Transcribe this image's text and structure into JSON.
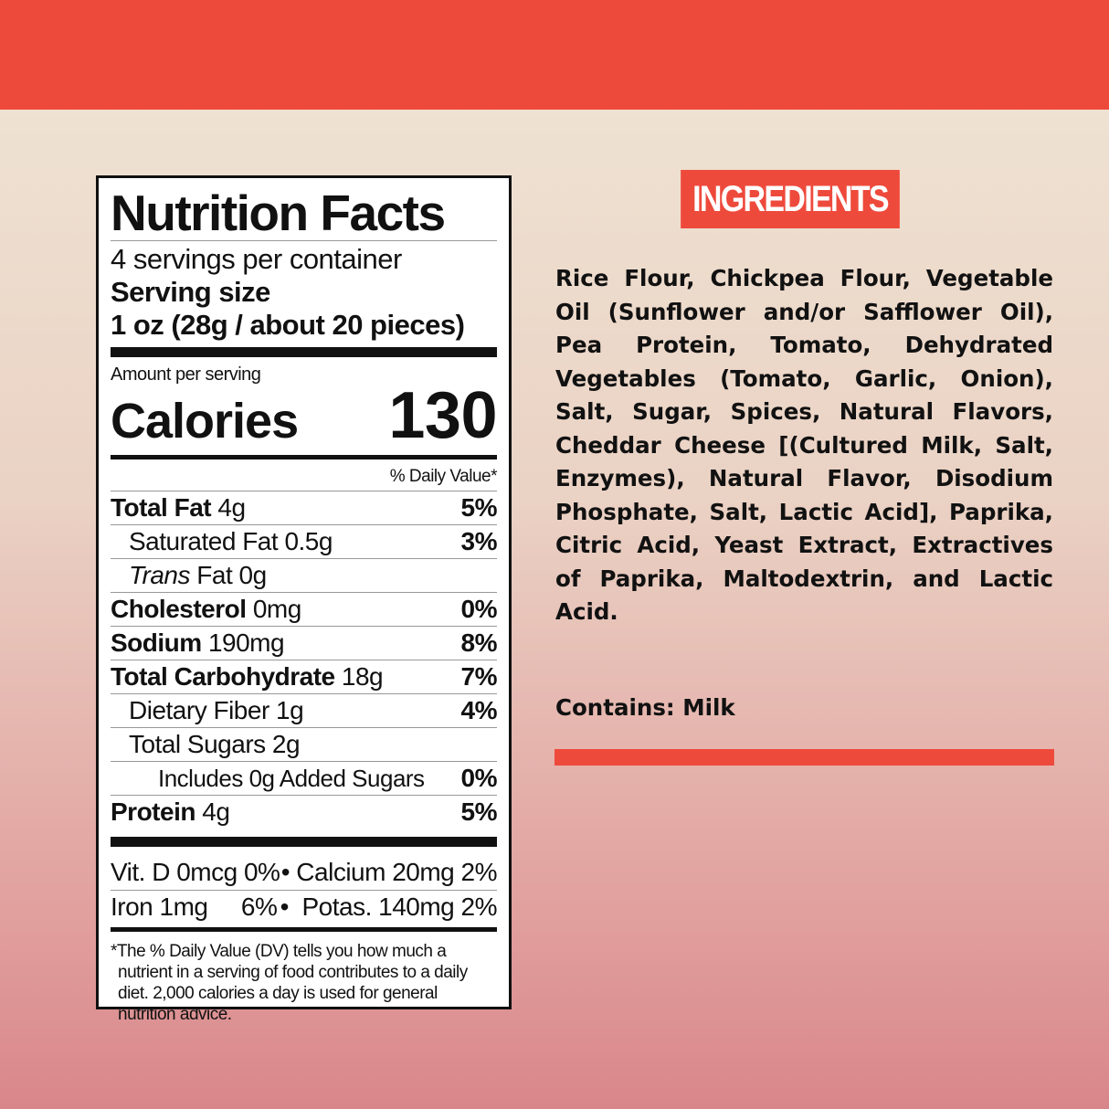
{
  "colors": {
    "brand_red": "#ee4a3c"
  },
  "nutrition": {
    "title": "Nutrition Facts",
    "servings": "4 servings per container",
    "serving_size_label": "Serving size",
    "serving_size": "1 oz (28g / about 20 pieces)",
    "amount_per_serving": "Amount per serving",
    "calories_label": "Calories",
    "calories": "130",
    "dv_header": "% Daily Value*",
    "rows": [
      {
        "name": "Total Fat",
        "amount": "4g",
        "dv": "5%"
      },
      {
        "name": "Saturated Fat",
        "amount": "0.5g",
        "dv": "3%"
      },
      {
        "name": "Trans",
        "name2": "Fat",
        "amount": "0g",
        "dv": ""
      },
      {
        "name": "Cholesterol",
        "amount": "0mg",
        "dv": "0%"
      },
      {
        "name": "Sodium",
        "amount": "190mg",
        "dv": "8%"
      },
      {
        "name": "Total Carbohydrate",
        "amount": "18g",
        "dv": "7%"
      },
      {
        "name": "Dietary Fiber",
        "amount": "1g",
        "dv": "4%"
      },
      {
        "name": "Total Sugars",
        "amount": "2g",
        "dv": ""
      },
      {
        "name": "Includes 0g Added Sugars",
        "amount": "",
        "dv": "0%"
      },
      {
        "name": "Protein",
        "amount": "4g",
        "dv": "5%"
      }
    ],
    "vitamins": [
      {
        "left": "Vit. D 0mcg 0%",
        "right": "• Calcium 20mg 2%"
      },
      {
        "left": "Iron 1mg     6%",
        "right": "•  Potas. 140mg 2%"
      }
    ],
    "footnote": "*The % Daily Value (DV) tells you how much a nutrient in a serving of food contributes to a daily diet. 2,000 calories a day is used for general nutrition advice."
  },
  "ingredients": {
    "heading": "INGREDIENTS",
    "text": "Rice Flour, Chickpea Flour, Vegetable Oil (Sunflower and/or Safflower Oil), Pea Protein, Tomato, Dehydrated Vegetables (Tomato, Garlic, Onion), Salt, Sugar, Spices, Natural Flavors, Cheddar Cheese [(Cultured Milk, Salt, Enzymes), Natural Flavor, Disodium Phosphate, Salt, Lactic Acid], Paprika, Citric Acid, Yeast Extract, Extractives of Paprika, Maltodextrin, and Lactic Acid.",
    "contains": "Contains: Milk"
  }
}
